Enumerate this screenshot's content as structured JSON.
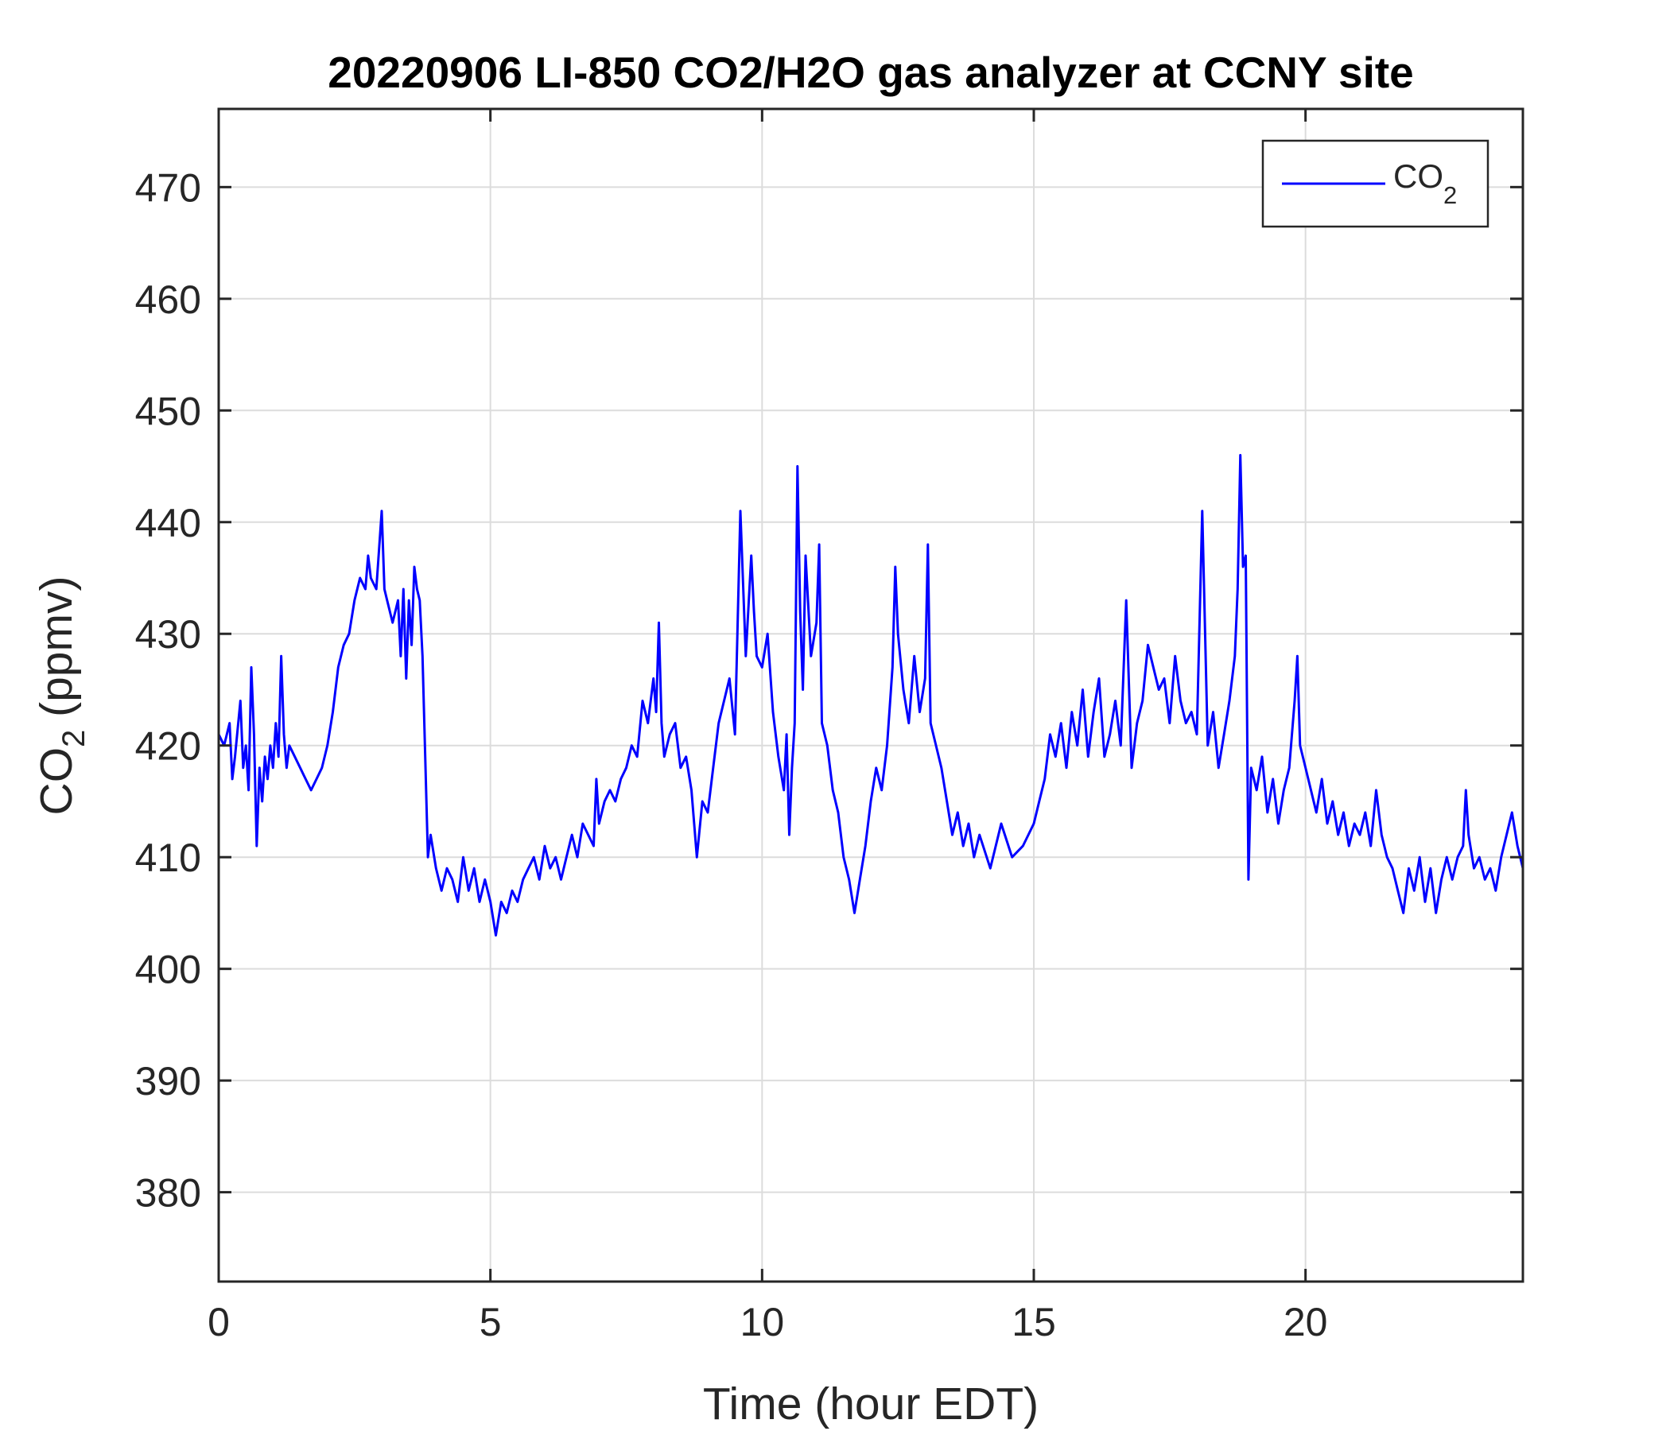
{
  "chart_data": {
    "type": "line",
    "title": "20220906 LI-850 CO2/H2O gas analyzer at CCNY site",
    "xlabel": "Time (hour EDT)",
    "ylabel": {
      "base": "CO",
      "subscript": "2",
      "suffix": " (ppmv)"
    },
    "xlim": [
      0,
      24
    ],
    "ylim": [
      372,
      477
    ],
    "xticks": [
      0,
      5,
      10,
      15,
      20
    ],
    "yticks": [
      380,
      390,
      400,
      410,
      420,
      430,
      440,
      450,
      460,
      470
    ],
    "grid": true,
    "legend_position": "top-right",
    "colors": {
      "series": "#0000ff",
      "grid": "#dcdcdc",
      "axes": "#262626"
    },
    "series": [
      {
        "name": {
          "base": "CO",
          "subscript": "2"
        },
        "color": "#0000ff",
        "points": [
          [
            0.0,
            421
          ],
          [
            0.1,
            420
          ],
          [
            0.2,
            422
          ],
          [
            0.25,
            417
          ],
          [
            0.3,
            419
          ],
          [
            0.4,
            424
          ],
          [
            0.45,
            418
          ],
          [
            0.5,
            420
          ],
          [
            0.55,
            416
          ],
          [
            0.6,
            427
          ],
          [
            0.65,
            421
          ],
          [
            0.7,
            411
          ],
          [
            0.75,
            418
          ],
          [
            0.8,
            415
          ],
          [
            0.85,
            419
          ],
          [
            0.9,
            417
          ],
          [
            0.95,
            420
          ],
          [
            1.0,
            418
          ],
          [
            1.05,
            422
          ],
          [
            1.1,
            419
          ],
          [
            1.15,
            428
          ],
          [
            1.2,
            421
          ],
          [
            1.25,
            418
          ],
          [
            1.3,
            420
          ],
          [
            1.4,
            419
          ],
          [
            1.5,
            418
          ],
          [
            1.6,
            417
          ],
          [
            1.7,
            416
          ],
          [
            1.8,
            417
          ],
          [
            1.9,
            418
          ],
          [
            2.0,
            420
          ],
          [
            2.1,
            423
          ],
          [
            2.2,
            427
          ],
          [
            2.3,
            429
          ],
          [
            2.4,
            430
          ],
          [
            2.5,
            433
          ],
          [
            2.6,
            435
          ],
          [
            2.7,
            434
          ],
          [
            2.75,
            437
          ],
          [
            2.8,
            435
          ],
          [
            2.9,
            434
          ],
          [
            3.0,
            441
          ],
          [
            3.05,
            434
          ],
          [
            3.1,
            433
          ],
          [
            3.2,
            431
          ],
          [
            3.3,
            433
          ],
          [
            3.35,
            428
          ],
          [
            3.4,
            434
          ],
          [
            3.45,
            426
          ],
          [
            3.5,
            433
          ],
          [
            3.55,
            429
          ],
          [
            3.6,
            436
          ],
          [
            3.65,
            434
          ],
          [
            3.7,
            433
          ],
          [
            3.75,
            428
          ],
          [
            3.8,
            419
          ],
          [
            3.85,
            410
          ],
          [
            3.9,
            412
          ],
          [
            4.0,
            409
          ],
          [
            4.1,
            407
          ],
          [
            4.2,
            409
          ],
          [
            4.3,
            408
          ],
          [
            4.4,
            406
          ],
          [
            4.5,
            410
          ],
          [
            4.6,
            407
          ],
          [
            4.7,
            409
          ],
          [
            4.8,
            406
          ],
          [
            4.9,
            408
          ],
          [
            5.0,
            406
          ],
          [
            5.1,
            403
          ],
          [
            5.2,
            406
          ],
          [
            5.3,
            405
          ],
          [
            5.4,
            407
          ],
          [
            5.5,
            406
          ],
          [
            5.6,
            408
          ],
          [
            5.7,
            409
          ],
          [
            5.8,
            410
          ],
          [
            5.9,
            408
          ],
          [
            6.0,
            411
          ],
          [
            6.1,
            409
          ],
          [
            6.2,
            410
          ],
          [
            6.3,
            408
          ],
          [
            6.4,
            410
          ],
          [
            6.5,
            412
          ],
          [
            6.6,
            410
          ],
          [
            6.7,
            413
          ],
          [
            6.8,
            412
          ],
          [
            6.9,
            411
          ],
          [
            6.95,
            417
          ],
          [
            7.0,
            413
          ],
          [
            7.1,
            415
          ],
          [
            7.2,
            416
          ],
          [
            7.3,
            415
          ],
          [
            7.4,
            417
          ],
          [
            7.5,
            418
          ],
          [
            7.6,
            420
          ],
          [
            7.7,
            419
          ],
          [
            7.8,
            424
          ],
          [
            7.9,
            422
          ],
          [
            8.0,
            426
          ],
          [
            8.05,
            423
          ],
          [
            8.1,
            431
          ],
          [
            8.15,
            422
          ],
          [
            8.2,
            419
          ],
          [
            8.3,
            421
          ],
          [
            8.4,
            422
          ],
          [
            8.5,
            418
          ],
          [
            8.6,
            419
          ],
          [
            8.7,
            416
          ],
          [
            8.8,
            410
          ],
          [
            8.9,
            415
          ],
          [
            9.0,
            414
          ],
          [
            9.1,
            418
          ],
          [
            9.2,
            422
          ],
          [
            9.3,
            424
          ],
          [
            9.4,
            426
          ],
          [
            9.5,
            421
          ],
          [
            9.6,
            441
          ],
          [
            9.7,
            428
          ],
          [
            9.8,
            437
          ],
          [
            9.85,
            432
          ],
          [
            9.9,
            428
          ],
          [
            10.0,
            427
          ],
          [
            10.1,
            430
          ],
          [
            10.2,
            423
          ],
          [
            10.3,
            419
          ],
          [
            10.4,
            416
          ],
          [
            10.45,
            421
          ],
          [
            10.5,
            412
          ],
          [
            10.55,
            418
          ],
          [
            10.6,
            422
          ],
          [
            10.65,
            445
          ],
          [
            10.7,
            432
          ],
          [
            10.75,
            425
          ],
          [
            10.8,
            437
          ],
          [
            10.9,
            428
          ],
          [
            11.0,
            431
          ],
          [
            11.05,
            438
          ],
          [
            11.1,
            422
          ],
          [
            11.2,
            420
          ],
          [
            11.3,
            416
          ],
          [
            11.4,
            414
          ],
          [
            11.5,
            410
          ],
          [
            11.6,
            408
          ],
          [
            11.7,
            405
          ],
          [
            11.8,
            408
          ],
          [
            11.9,
            411
          ],
          [
            12.0,
            415
          ],
          [
            12.1,
            418
          ],
          [
            12.2,
            416
          ],
          [
            12.3,
            420
          ],
          [
            12.4,
            427
          ],
          [
            12.45,
            436
          ],
          [
            12.5,
            430
          ],
          [
            12.6,
            425
          ],
          [
            12.7,
            422
          ],
          [
            12.8,
            428
          ],
          [
            12.9,
            423
          ],
          [
            13.0,
            426
          ],
          [
            13.05,
            438
          ],
          [
            13.1,
            422
          ],
          [
            13.2,
            420
          ],
          [
            13.3,
            418
          ],
          [
            13.4,
            415
          ],
          [
            13.5,
            412
          ],
          [
            13.6,
            414
          ],
          [
            13.7,
            411
          ],
          [
            13.8,
            413
          ],
          [
            13.9,
            410
          ],
          [
            14.0,
            412
          ],
          [
            14.2,
            409
          ],
          [
            14.4,
            413
          ],
          [
            14.6,
            410
          ],
          [
            14.8,
            411
          ],
          [
            15.0,
            413
          ],
          [
            15.1,
            415
          ],
          [
            15.2,
            417
          ],
          [
            15.3,
            421
          ],
          [
            15.4,
            419
          ],
          [
            15.5,
            422
          ],
          [
            15.6,
            418
          ],
          [
            15.7,
            423
          ],
          [
            15.8,
            420
          ],
          [
            15.9,
            425
          ],
          [
            16.0,
            419
          ],
          [
            16.1,
            423
          ],
          [
            16.2,
            426
          ],
          [
            16.3,
            419
          ],
          [
            16.4,
            421
          ],
          [
            16.5,
            424
          ],
          [
            16.6,
            420
          ],
          [
            16.7,
            433
          ],
          [
            16.8,
            418
          ],
          [
            16.9,
            422
          ],
          [
            17.0,
            424
          ],
          [
            17.1,
            429
          ],
          [
            17.2,
            427
          ],
          [
            17.3,
            425
          ],
          [
            17.4,
            426
          ],
          [
            17.5,
            422
          ],
          [
            17.6,
            428
          ],
          [
            17.7,
            424
          ],
          [
            17.8,
            422
          ],
          [
            17.9,
            423
          ],
          [
            18.0,
            421
          ],
          [
            18.1,
            441
          ],
          [
            18.2,
            420
          ],
          [
            18.3,
            423
          ],
          [
            18.4,
            418
          ],
          [
            18.5,
            421
          ],
          [
            18.6,
            424
          ],
          [
            18.7,
            428
          ],
          [
            18.75,
            434
          ],
          [
            18.8,
            446
          ],
          [
            18.85,
            436
          ],
          [
            18.9,
            437
          ],
          [
            18.95,
            408
          ],
          [
            19.0,
            418
          ],
          [
            19.1,
            416
          ],
          [
            19.2,
            419
          ],
          [
            19.3,
            414
          ],
          [
            19.4,
            417
          ],
          [
            19.5,
            413
          ],
          [
            19.6,
            416
          ],
          [
            19.7,
            418
          ],
          [
            19.8,
            424
          ],
          [
            19.85,
            428
          ],
          [
            19.9,
            420
          ],
          [
            20.0,
            418
          ],
          [
            20.1,
            416
          ],
          [
            20.2,
            414
          ],
          [
            20.3,
            417
          ],
          [
            20.4,
            413
          ],
          [
            20.5,
            415
          ],
          [
            20.6,
            412
          ],
          [
            20.7,
            414
          ],
          [
            20.8,
            411
          ],
          [
            20.9,
            413
          ],
          [
            21.0,
            412
          ],
          [
            21.1,
            414
          ],
          [
            21.2,
            411
          ],
          [
            21.3,
            416
          ],
          [
            21.4,
            412
          ],
          [
            21.5,
            410
          ],
          [
            21.6,
            409
          ],
          [
            21.7,
            407
          ],
          [
            21.8,
            405
          ],
          [
            21.9,
            409
          ],
          [
            22.0,
            407
          ],
          [
            22.1,
            410
          ],
          [
            22.2,
            406
          ],
          [
            22.3,
            409
          ],
          [
            22.4,
            405
          ],
          [
            22.5,
            408
          ],
          [
            22.6,
            410
          ],
          [
            22.7,
            408
          ],
          [
            22.8,
            410
          ],
          [
            22.9,
            411
          ],
          [
            22.95,
            416
          ],
          [
            23.0,
            412
          ],
          [
            23.1,
            409
          ],
          [
            23.2,
            410
          ],
          [
            23.3,
            408
          ],
          [
            23.4,
            409
          ],
          [
            23.5,
            407
          ],
          [
            23.6,
            410
          ],
          [
            23.7,
            412
          ],
          [
            23.8,
            414
          ],
          [
            23.9,
            411
          ],
          [
            24.0,
            409
          ]
        ]
      }
    ]
  }
}
